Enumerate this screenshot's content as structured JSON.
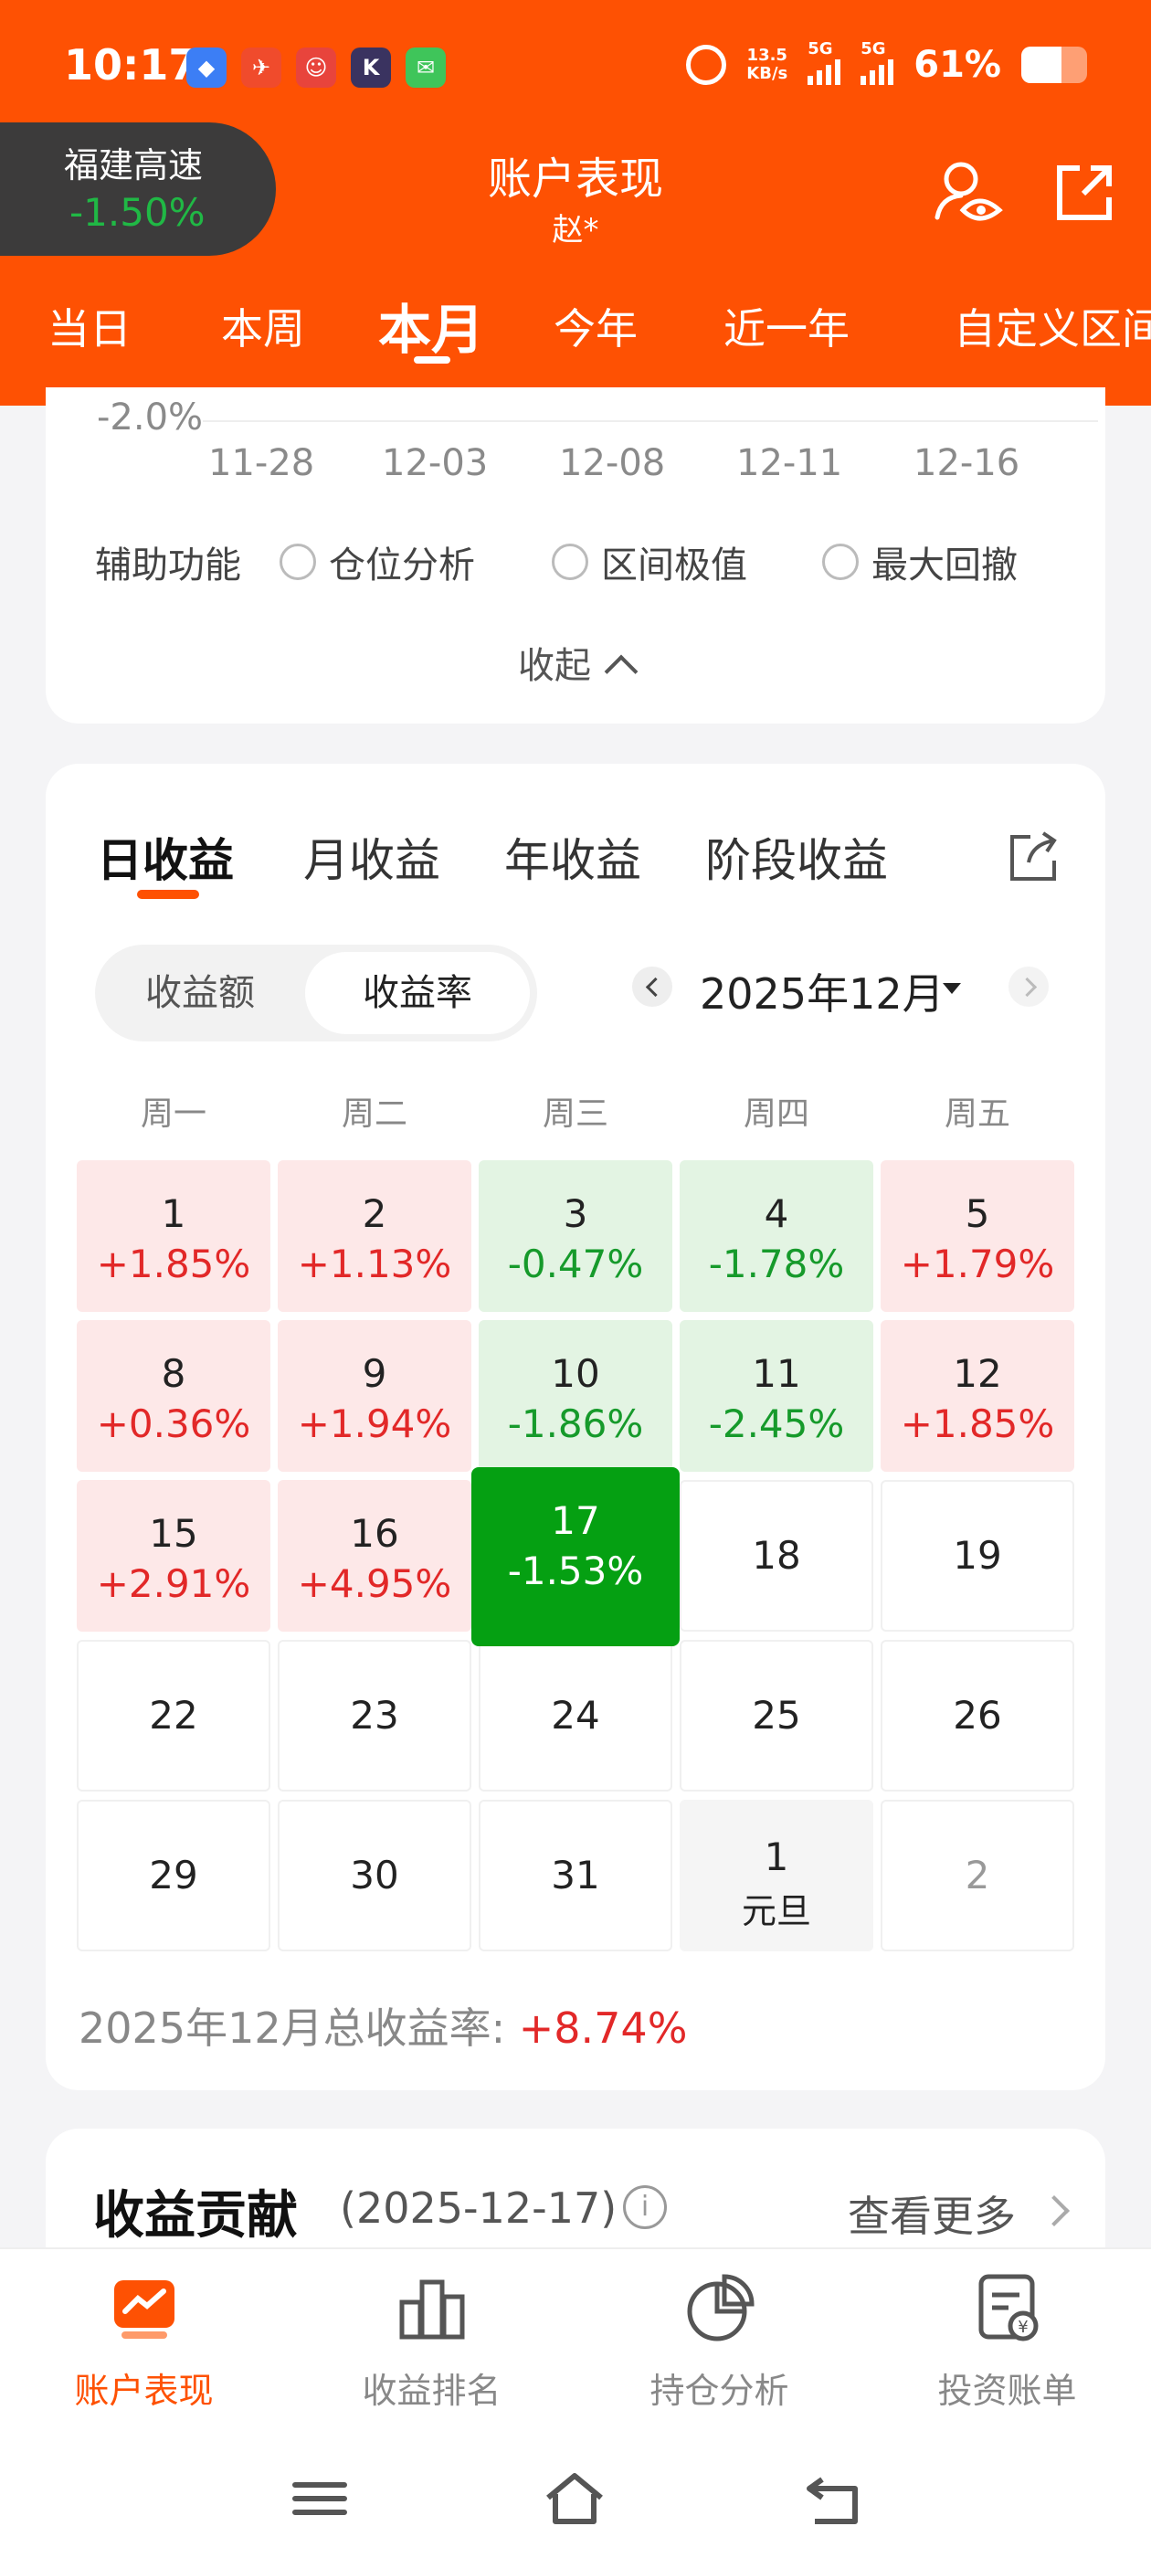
{
  "status_bar": {
    "time": "10:17",
    "apps": [
      {
        "icon": "blue-app-icon",
        "glyph": "◆",
        "color": "#3c7ef5"
      },
      {
        "icon": "red-app-icon",
        "glyph": "✈",
        "color": "#f04b2c"
      },
      {
        "icon": "clown-app-icon",
        "glyph": "☺",
        "color": "#e8443c"
      },
      {
        "icon": "k-app-icon",
        "glyph": "K",
        "color": "#3a3360"
      },
      {
        "icon": "wechat-icon",
        "glyph": "✉",
        "color": "#3fc55a"
      }
    ],
    "net_speed_value": "13.5",
    "net_speed_unit": "KB/s",
    "signal_tag_1": "5G",
    "signal_tag_2": "5G",
    "battery_pct": "61%",
    "battery_level": 0.61
  },
  "header": {
    "index_name": "福建高速",
    "index_change": "-1.50%",
    "title": "账户表现",
    "subtitle": "赵*",
    "period_tabs": [
      {
        "label": "当日"
      },
      {
        "label": "本周"
      },
      {
        "label": "本月",
        "active": true
      },
      {
        "label": "今年"
      },
      {
        "label": "近一年"
      },
      {
        "label": "自定义区间"
      }
    ]
  },
  "chart_tail": {
    "y_tick": "-2.0%",
    "x_ticks": [
      "11-28",
      "12-03",
      "12-08",
      "12-11",
      "12-16"
    ],
    "aux_label": "辅助功能",
    "aux_options": [
      "仓位分析",
      "区间极值",
      "最大回撤"
    ],
    "collapse_label": "收起"
  },
  "calendar": {
    "profit_tabs": [
      {
        "label": "日收益",
        "active": true
      },
      {
        "label": "月收益"
      },
      {
        "label": "年收益"
      },
      {
        "label": "阶段收益"
      }
    ],
    "toggle": [
      "收益额",
      "收益率"
    ],
    "toggle_selected": 1,
    "month": "2025年12月",
    "weekdays": [
      "周一",
      "周二",
      "周三",
      "周四",
      "周五"
    ],
    "days": [
      [
        {
          "d": "1",
          "p": "+1.85%"
        },
        {
          "d": "2",
          "p": "+1.13%"
        },
        {
          "d": "3",
          "p": "-0.47%"
        },
        {
          "d": "4",
          "p": "-1.78%"
        },
        {
          "d": "5",
          "p": "+1.79%"
        }
      ],
      [
        {
          "d": "8",
          "p": "+0.36%"
        },
        {
          "d": "9",
          "p": "+1.94%"
        },
        {
          "d": "10",
          "p": "-1.86%"
        },
        {
          "d": "11",
          "p": "-2.45%"
        },
        {
          "d": "12",
          "p": "+1.85%"
        }
      ],
      [
        {
          "d": "15",
          "p": "+2.91%"
        },
        {
          "d": "16",
          "p": "+4.95%"
        },
        {
          "d": "17",
          "p": "-1.53%",
          "today": true
        },
        {
          "d": "18"
        },
        {
          "d": "19"
        }
      ],
      [
        {
          "d": "22"
        },
        {
          "d": "23"
        },
        {
          "d": "24"
        },
        {
          "d": "25"
        },
        {
          "d": "26"
        }
      ],
      [
        {
          "d": "29"
        },
        {
          "d": "30"
        },
        {
          "d": "31"
        },
        {
          "d": "1",
          "note": "元旦"
        },
        {
          "d": "2",
          "faded": true
        }
      ]
    ],
    "summary_label": "2025年12月总收益率:",
    "summary_value": "+8.74%"
  },
  "contribution": {
    "title": "收益贡献",
    "date": "(2025-12-17)",
    "info": "i",
    "see_more": "查看更多"
  },
  "bottom_nav": [
    {
      "label": "账户表现",
      "icon": "account-performance-icon",
      "active": true
    },
    {
      "label": "收益排名",
      "icon": "ranking-icon"
    },
    {
      "label": "持仓分析",
      "icon": "holdings-pie-icon"
    },
    {
      "label": "投资账单",
      "icon": "bill-icon"
    }
  ],
  "colors": {
    "brand": "#fe5103",
    "gain": "#e22828",
    "loss": "#169a2b",
    "today": "#05a012"
  }
}
